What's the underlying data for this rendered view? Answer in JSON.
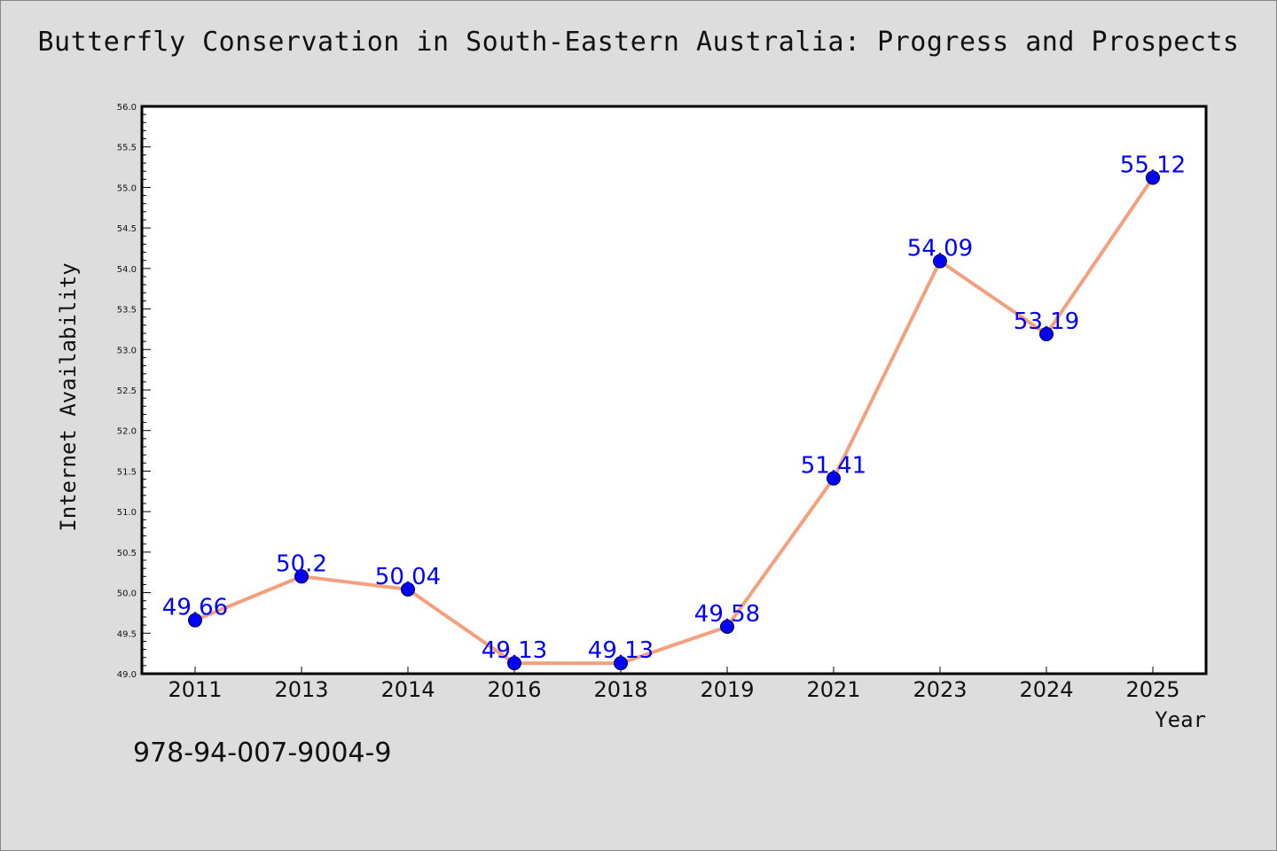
{
  "chart_data": {
    "type": "line",
    "title": "Butterfly Conservation in South-Eastern Australia: Progress and Prospects",
    "xlabel": "Year",
    "ylabel": "Internet Availability",
    "categories": [
      "2011",
      "2013",
      "2014",
      "2016",
      "2018",
      "2019",
      "2021",
      "2023",
      "2024",
      "2025"
    ],
    "series": [
      {
        "values": [
          49.66,
          50.2,
          50.04,
          49.13,
          49.13,
          49.58,
          51.41,
          54.09,
          53.19,
          55.12
        ],
        "data_labels": [
          "49.66",
          "50.2",
          "50.04",
          "49.13",
          "49.13",
          "49.58",
          "51.41",
          "54.09",
          "53.19",
          "55.12"
        ],
        "line_color": "#f4a07c",
        "marker_color": "#0000ff"
      }
    ],
    "ylim": [
      49.0,
      56.0
    ],
    "yticks": [
      "49.0",
      "49.5",
      "50.0",
      "50.5",
      "51.0",
      "51.5",
      "52.0",
      "52.5",
      "53.0",
      "53.5",
      "54.0",
      "54.5",
      "55.0",
      "55.5",
      "56.0"
    ],
    "grid": false,
    "legend": "none"
  },
  "footer": {
    "isbn": "978-94-007-9004-9"
  },
  "colors": {
    "background": "#dddddd",
    "plot_background": "#ffffff",
    "label_color": "#0000ff"
  }
}
